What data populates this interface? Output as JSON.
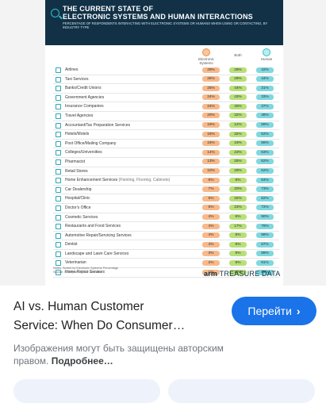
{
  "infographic": {
    "title_line1": "THE CURRENT STATE OF",
    "title_line2": "ELECTRONIC SYSTEMS AND HUMAN INTERACTIONS",
    "subtitle": "PERCENTAGE OF RESPONDENTS INTERACTING WITH ELECTRONIC SYSTEMS OR HUMANS WHEN USING OR CONTACTING, BY INDUSTRY TYPE",
    "legend": {
      "electronic": "Electronic Systems",
      "both": "Both",
      "human": "Human"
    },
    "colors": {
      "header": "#123147",
      "electronic": "#f7b98a",
      "both": "#b8e07a",
      "human": "#7fd8df",
      "accent": "#2ec1c9"
    },
    "rows": [
      {
        "label": "Airlines",
        "note": "",
        "electronic": "29%",
        "both": "29%",
        "human": "42%"
      },
      {
        "label": "Taxi Services",
        "note": "",
        "electronic": "26%",
        "both": "29%",
        "human": "44%"
      },
      {
        "label": "Banks/Credit Unions",
        "note": "",
        "electronic": "25%",
        "both": "44%",
        "human": "31%"
      },
      {
        "label": "Government Agencies",
        "note": "",
        "electronic": "24%",
        "both": "43%",
        "human": "33%"
      },
      {
        "label": "Insurance Companies",
        "note": "",
        "electronic": "24%",
        "both": "40%",
        "human": "37%"
      },
      {
        "label": "Travel Agencies",
        "note": "",
        "electronic": "20%",
        "both": "32%",
        "human": "48%"
      },
      {
        "label": "Accountant/Tax Preparation Services",
        "note": "",
        "electronic": "19%",
        "both": "12%",
        "human": "69%"
      },
      {
        "label": "Hotels/Motels",
        "note": "",
        "electronic": "16%",
        "both": "32%",
        "human": "52%"
      },
      {
        "label": "Post Office/Mailing Company",
        "note": "",
        "electronic": "16%",
        "both": "19%",
        "human": "65%"
      },
      {
        "label": "Colleges/Universities",
        "note": "",
        "electronic": "14%",
        "both": "23%",
        "human": "63%"
      },
      {
        "label": "Pharmacist",
        "note": "",
        "electronic": "13%",
        "both": "25%",
        "human": "62%"
      },
      {
        "label": "Retail Stores",
        "note": "",
        "electronic": "10%",
        "both": "29%",
        "human": "62%"
      },
      {
        "label": "Home Enhancement Services",
        "note": "(Painting, Flooring, Cabinets)",
        "electronic": "8%",
        "both": "8%",
        "human": "84%"
      },
      {
        "label": "Car Dealership",
        "note": "",
        "electronic": "7%",
        "both": "20%",
        "human": "73%"
      },
      {
        "label": "Hospital/Clinic",
        "note": "",
        "electronic": "5%",
        "both": "32%",
        "human": "62%"
      },
      {
        "label": "Doctor's Office",
        "note": "",
        "electronic": "5%",
        "both": "23%",
        "human": "72%"
      },
      {
        "label": "Cosmetic Services",
        "note": "",
        "electronic": "4%",
        "both": "6%",
        "human": "90%"
      },
      {
        "label": "Restaurants and Food Services",
        "note": "",
        "electronic": "4%",
        "both": "17%",
        "human": "79%"
      },
      {
        "label": "Automotive Repair/Servicing Services",
        "note": "",
        "electronic": "4%",
        "both": "9%",
        "human": "88%"
      },
      {
        "label": "Dentist",
        "note": "",
        "electronic": "4%",
        "both": "9%",
        "human": "87%"
      },
      {
        "label": "Landscape and Lawn Care Services",
        "note": "",
        "electronic": "3%",
        "both": "9%",
        "human": "88%"
      },
      {
        "label": "Veterinarian",
        "note": "",
        "electronic": "2%",
        "both": "8%",
        "human": "91%"
      },
      {
        "label": "Home Repair Services",
        "note": "",
        "electronic": "1%",
        "both": "10%",
        "human": "89%"
      }
    ],
    "notes_line1": "Notes: Sorted by Electronic Systems Percentage",
    "notes_line2": "Source: Survey of 1,000 U.S. Adults",
    "brand_arm": "arm",
    "brand_rest": "TREASURE DATA"
  },
  "result": {
    "title_line1": "AI vs. Human Customer",
    "title_line2": "Service: When Do Consumer…",
    "go_label": "Перейти",
    "go_chevron": "›",
    "copyright_text": "Изображения могут быть защищены авторским правом.",
    "more_label": "Подробнее…"
  }
}
